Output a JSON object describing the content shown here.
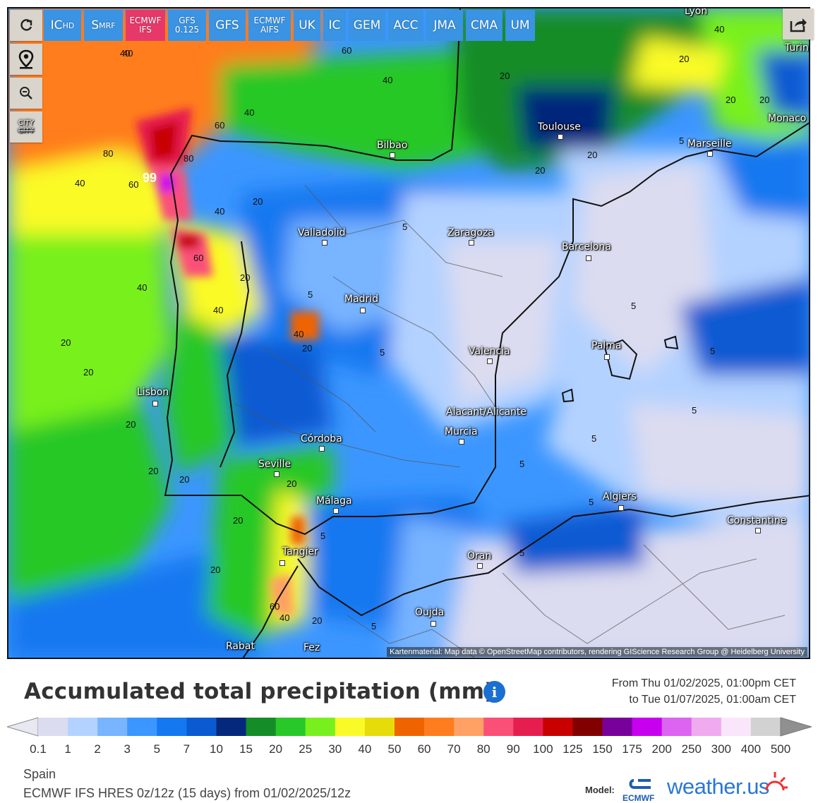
{
  "toolbar": {
    "refresh_icon": "refresh-icon",
    "location_icon": "map-pin-icon",
    "zoom_icon": "zoom-out-icon",
    "city_toggle": {
      "line1": "CITY",
      "line2": "CITY"
    },
    "share_icon": "share-icon"
  },
  "models": [
    {
      "label": "IC",
      "sub": "HD",
      "color": "#2f8fe0"
    },
    {
      "label": "S",
      "sub": "MRF",
      "color": "#2f8fe0"
    },
    {
      "label": "ECMWF",
      "line2": "IFS",
      "color": "#e53a67",
      "active": true
    },
    {
      "label": "GFS",
      "line2": "0.125",
      "color": "#2f8fe0"
    },
    {
      "label": "GFS",
      "color": "#2f8fe0"
    },
    {
      "label": "ECMWF",
      "line2": "AIFS",
      "color": "#2f8fe0"
    },
    {
      "label": "UK",
      "color": "#2f8fe0"
    },
    {
      "label": "IC",
      "color": "#2f8fe0"
    },
    {
      "label": "GEM",
      "color": "#2f8fe0"
    },
    {
      "label": "ACC",
      "color": "#2f8fe0"
    },
    {
      "label": "JMA",
      "color": "#2f8fe0"
    },
    {
      "label": "CMA",
      "color": "#2f8fe0"
    },
    {
      "label": "UM",
      "color": "#2f8fe0"
    }
  ],
  "cities": [
    "Lyon",
    "Turin",
    "Toulouse",
    "Monaco",
    "Marseille",
    "Bilbao",
    "Valladolid",
    "Zaragoza",
    "Barcelona",
    "Madrid",
    "Valencia",
    "Palma",
    "Lisbon",
    "Alacant/Alicante",
    "Murcia",
    "Córdoba",
    "Seville",
    "Málaga",
    "Algiers",
    "Constantine",
    "Tangier",
    "Oran",
    "Oujda",
    "Rabat",
    "Fez"
  ],
  "contour_labels": [
    "40",
    "60",
    "60",
    "40",
    "20",
    "20",
    "40",
    "60",
    "80",
    "80",
    "40",
    "60",
    "99",
    "40",
    "20",
    "40",
    "20",
    "60",
    "40",
    "20",
    "20",
    "20",
    "40",
    "20",
    "20",
    "20",
    "20",
    "20",
    "20",
    "20",
    "20",
    "20",
    "60",
    "40",
    "20",
    "20",
    "5",
    "5",
    "5",
    "5",
    "5",
    "5",
    "5",
    "5",
    "5",
    "5",
    "5",
    "5",
    "5",
    "20",
    "20",
    "5",
    "5",
    "20",
    "5",
    "5",
    "5"
  ],
  "attribution": "Kartenmaterial: Map data © OpenStreetMap contributors, rendering GIScience Research Group @ Heidelberg University",
  "legend": {
    "title": "Accumulated total precipitation (mm)",
    "info_icon": "info-icon",
    "from": "From Thu 01/02/2025, 01:00pm CET",
    "to": "to Tue 01/07/2025, 01:00am CET",
    "ticks": [
      "0.1",
      "1",
      "2",
      "3",
      "5",
      "7",
      "10",
      "15",
      "20",
      "25",
      "30",
      "40",
      "50",
      "60",
      "70",
      "80",
      "90",
      "100",
      "125",
      "150",
      "175",
      "200",
      "250",
      "300",
      "400",
      "500"
    ],
    "colors": [
      "#dcdcf0",
      "#b4d2ff",
      "#78b4ff",
      "#3c96ff",
      "#1478f0",
      "#0a5ad2",
      "#06287c",
      "#148c28",
      "#28c828",
      "#78f01e",
      "#fafa28",
      "#e6dc0a",
      "#f06400",
      "#ff7d1e",
      "#ffa064",
      "#fa5078",
      "#e61e50",
      "#c80000",
      "#820000",
      "#78009b",
      "#c800f0",
      "#dc64f0",
      "#f0aaf0",
      "#fae6fa",
      "#d2d2d2"
    ],
    "region": "Spain",
    "run": "ECMWF IFS HRES 0z/12z (15 days) from 01/02/2025/12z",
    "model_label": "Model:",
    "ecmwf_text": "ECMWF",
    "brand": "weather.us"
  }
}
